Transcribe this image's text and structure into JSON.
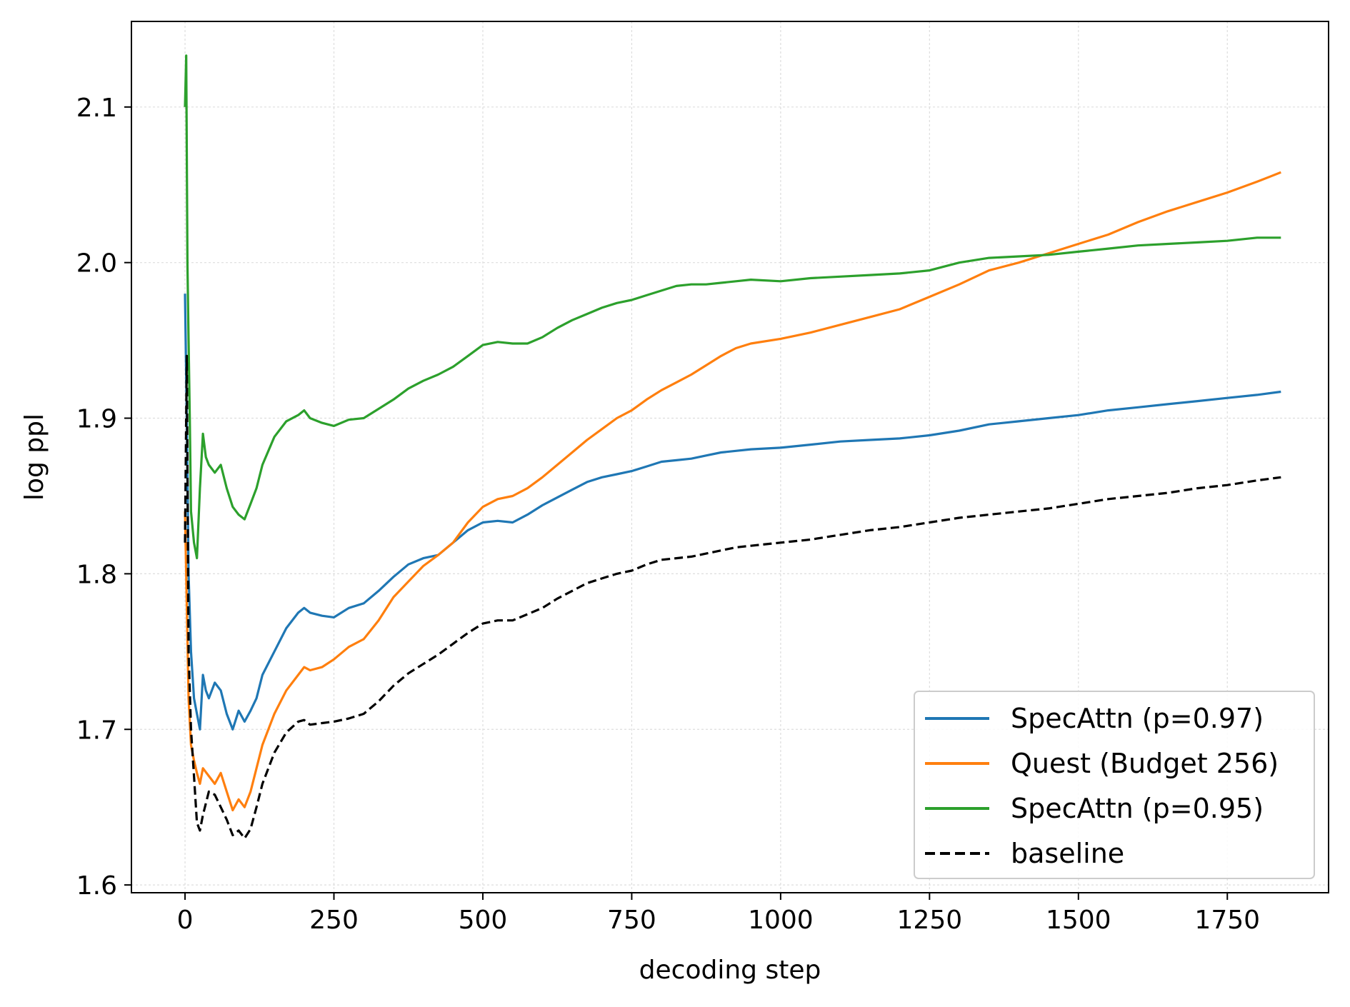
{
  "chart_data": {
    "type": "line",
    "title": "",
    "xlabel": "decoding step",
    "ylabel": "log ppl",
    "xlim": [
      -90,
      1920
    ],
    "ylim": [
      1.595,
      2.155
    ],
    "xticks": [
      0,
      250,
      500,
      750,
      1000,
      1250,
      1500,
      1750
    ],
    "yticks": [
      1.6,
      1.7,
      1.8,
      1.9,
      2.0,
      2.1
    ],
    "xtick_labels": [
      "0",
      "250",
      "500",
      "750",
      "1000",
      "1250",
      "1500",
      "1750"
    ],
    "ytick_labels": [
      "1.6",
      "1.7",
      "1.8",
      "1.9",
      "2.0",
      "2.1"
    ],
    "grid": true,
    "legend_position": "lower-right",
    "series": [
      {
        "name": "SpecAttn (p=0.97)",
        "color": "#1f77b4",
        "dash": "solid",
        "x": [
          0,
          3,
          6,
          10,
          15,
          20,
          25,
          30,
          35,
          40,
          50,
          60,
          70,
          80,
          90,
          100,
          110,
          120,
          130,
          150,
          170,
          190,
          200,
          210,
          230,
          250,
          275,
          300,
          325,
          350,
          375,
          400,
          425,
          450,
          475,
          500,
          525,
          550,
          575,
          600,
          625,
          650,
          675,
          700,
          725,
          750,
          775,
          800,
          825,
          850,
          875,
          900,
          925,
          950,
          1000,
          1050,
          1100,
          1150,
          1200,
          1250,
          1300,
          1350,
          1400,
          1450,
          1500,
          1550,
          1600,
          1650,
          1700,
          1750,
          1800,
          1840
        ],
        "y": [
          1.98,
          1.9,
          1.8,
          1.75,
          1.72,
          1.71,
          1.7,
          1.735,
          1.725,
          1.72,
          1.73,
          1.725,
          1.71,
          1.7,
          1.712,
          1.705,
          1.712,
          1.72,
          1.735,
          1.75,
          1.765,
          1.775,
          1.778,
          1.775,
          1.773,
          1.772,
          1.778,
          1.781,
          1.789,
          1.798,
          1.806,
          1.81,
          1.812,
          1.82,
          1.828,
          1.833,
          1.834,
          1.833,
          1.838,
          1.844,
          1.849,
          1.854,
          1.859,
          1.862,
          1.864,
          1.866,
          1.869,
          1.872,
          1.873,
          1.874,
          1.876,
          1.878,
          1.879,
          1.88,
          1.881,
          1.883,
          1.885,
          1.886,
          1.887,
          1.889,
          1.892,
          1.896,
          1.898,
          1.9,
          1.902,
          1.905,
          1.907,
          1.909,
          1.911,
          1.913,
          1.915,
          1.917
        ]
      },
      {
        "name": "Quest (Budget 256)",
        "color": "#ff7f0e",
        "dash": "solid",
        "x": [
          0,
          3,
          6,
          10,
          15,
          20,
          25,
          30,
          40,
          50,
          60,
          70,
          80,
          90,
          100,
          110,
          120,
          130,
          150,
          170,
          190,
          200,
          210,
          230,
          250,
          275,
          300,
          325,
          350,
          375,
          400,
          425,
          450,
          475,
          500,
          525,
          550,
          575,
          600,
          625,
          650,
          675,
          700,
          725,
          750,
          775,
          800,
          825,
          850,
          875,
          900,
          925,
          950,
          1000,
          1050,
          1100,
          1150,
          1200,
          1250,
          1300,
          1350,
          1400,
          1450,
          1500,
          1550,
          1600,
          1650,
          1700,
          1750,
          1800,
          1840
        ],
        "y": [
          1.84,
          1.78,
          1.72,
          1.69,
          1.68,
          1.672,
          1.665,
          1.675,
          1.67,
          1.665,
          1.672,
          1.66,
          1.648,
          1.655,
          1.65,
          1.66,
          1.675,
          1.69,
          1.71,
          1.725,
          1.735,
          1.74,
          1.738,
          1.74,
          1.745,
          1.753,
          1.758,
          1.77,
          1.785,
          1.795,
          1.805,
          1.812,
          1.82,
          1.833,
          1.843,
          1.848,
          1.85,
          1.855,
          1.862,
          1.87,
          1.878,
          1.886,
          1.893,
          1.9,
          1.905,
          1.912,
          1.918,
          1.923,
          1.928,
          1.934,
          1.94,
          1.945,
          1.948,
          1.951,
          1.955,
          1.96,
          1.965,
          1.97,
          1.978,
          1.986,
          1.995,
          2.0,
          2.006,
          2.012,
          2.018,
          2.026,
          2.033,
          2.039,
          2.045,
          2.052,
          2.058
        ]
      },
      {
        "name": "SpecAttn (p=0.95)",
        "color": "#2ca02c",
        "dash": "solid",
        "x": [
          0,
          2,
          4,
          6,
          8,
          10,
          15,
          20,
          25,
          30,
          35,
          40,
          50,
          60,
          70,
          80,
          90,
          100,
          110,
          120,
          130,
          150,
          170,
          190,
          200,
          210,
          230,
          250,
          275,
          300,
          325,
          350,
          375,
          400,
          425,
          450,
          475,
          500,
          525,
          550,
          575,
          600,
          625,
          650,
          675,
          700,
          725,
          750,
          775,
          800,
          825,
          850,
          875,
          900,
          925,
          950,
          1000,
          1050,
          1100,
          1150,
          1200,
          1250,
          1300,
          1350,
          1400,
          1450,
          1500,
          1550,
          1600,
          1650,
          1700,
          1750,
          1800,
          1840
        ],
        "y": [
          2.1,
          2.133,
          2.0,
          1.95,
          1.9,
          1.84,
          1.82,
          1.81,
          1.855,
          1.89,
          1.875,
          1.87,
          1.865,
          1.87,
          1.855,
          1.843,
          1.838,
          1.835,
          1.845,
          1.855,
          1.87,
          1.888,
          1.898,
          1.902,
          1.905,
          1.9,
          1.897,
          1.895,
          1.899,
          1.9,
          1.906,
          1.912,
          1.919,
          1.924,
          1.928,
          1.933,
          1.94,
          1.947,
          1.949,
          1.948,
          1.948,
          1.952,
          1.958,
          1.963,
          1.967,
          1.971,
          1.974,
          1.976,
          1.979,
          1.982,
          1.985,
          1.986,
          1.986,
          1.987,
          1.988,
          1.989,
          1.988,
          1.99,
          1.991,
          1.992,
          1.993,
          1.995,
          2.0,
          2.003,
          2.004,
          2.005,
          2.007,
          2.009,
          2.011,
          2.012,
          2.013,
          2.014,
          2.016,
          2.016
        ]
      },
      {
        "name": "baseline",
        "color": "#000000",
        "dash": "dashed",
        "x": [
          0,
          3,
          6,
          10,
          15,
          20,
          25,
          30,
          40,
          50,
          60,
          70,
          80,
          90,
          100,
          110,
          120,
          130,
          150,
          170,
          190,
          200,
          210,
          230,
          250,
          275,
          300,
          325,
          350,
          375,
          400,
          425,
          450,
          475,
          500,
          525,
          550,
          575,
          600,
          625,
          650,
          675,
          700,
          725,
          750,
          775,
          800,
          825,
          850,
          875,
          900,
          925,
          950,
          1000,
          1050,
          1100,
          1150,
          1200,
          1250,
          1300,
          1350,
          1400,
          1450,
          1500,
          1550,
          1600,
          1650,
          1700,
          1750,
          1800,
          1840
        ],
        "y": [
          1.82,
          1.94,
          1.75,
          1.7,
          1.67,
          1.64,
          1.635,
          1.645,
          1.66,
          1.658,
          1.65,
          1.642,
          1.632,
          1.635,
          1.63,
          1.636,
          1.65,
          1.665,
          1.685,
          1.698,
          1.705,
          1.706,
          1.703,
          1.704,
          1.705,
          1.707,
          1.71,
          1.718,
          1.728,
          1.736,
          1.742,
          1.748,
          1.755,
          1.762,
          1.768,
          1.77,
          1.77,
          1.774,
          1.778,
          1.784,
          1.789,
          1.794,
          1.797,
          1.8,
          1.802,
          1.806,
          1.809,
          1.81,
          1.811,
          1.813,
          1.815,
          1.817,
          1.818,
          1.82,
          1.822,
          1.825,
          1.828,
          1.83,
          1.833,
          1.836,
          1.838,
          1.84,
          1.842,
          1.845,
          1.848,
          1.85,
          1.852,
          1.855,
          1.857,
          1.86,
          1.862
        ]
      }
    ]
  }
}
